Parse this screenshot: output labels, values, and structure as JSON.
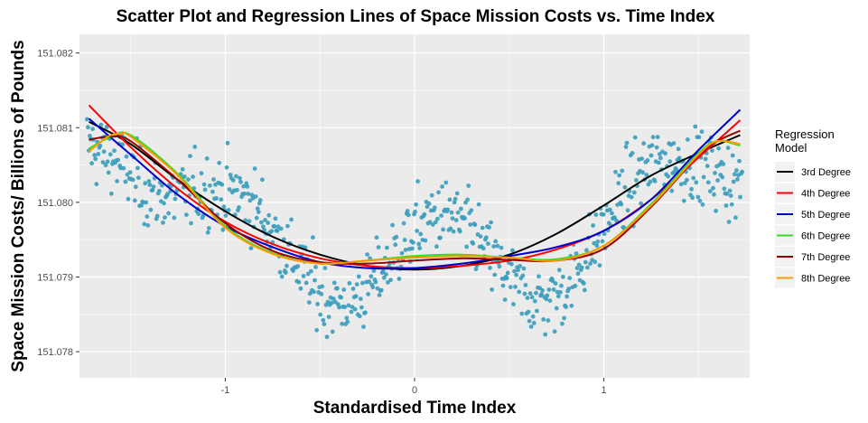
{
  "chart_data": {
    "type": "scatter",
    "title": "Scatter Plot and Regression Lines of Space Mission Costs vs. Time Index",
    "xlabel": "Standardised Time Index",
    "ylabel": "Space Mission Costs/ Billions of Pounds",
    "xlim": [
      -1.77,
      1.77
    ],
    "ylim": [
      151.07765,
      151.08225
    ],
    "x_ticks": [
      -1,
      0,
      1
    ],
    "x_tick_labels": [
      "-1",
      "0",
      "1"
    ],
    "y_ticks": [
      151.078,
      151.079,
      151.08,
      151.081,
      151.082
    ],
    "y_tick_labels": [
      "151.078",
      "151.079",
      "151.080",
      "151.081",
      "151.082"
    ],
    "grid": true,
    "point_color": "#3a9dbb",
    "point_count": 700,
    "points_trend": "U-shaped cloud around the regression curves with wave-like oscillation; roughly 151.0808–151.0815 at x = -1.7, minimum about 151.0791 near x = 0, rising to about 151.0808 at x = 1.7",
    "legend": {
      "title": "Regression\nModel",
      "placement": "right"
    },
    "series": [
      {
        "name": "3rd Degree",
        "color": "#000000",
        "x": [
          -1.72,
          -1.5,
          -1.25,
          -1.0,
          -0.75,
          -0.5,
          -0.25,
          0.0,
          0.25,
          0.5,
          0.75,
          1.0,
          1.25,
          1.5,
          1.72
        ],
        "y": [
          151.08108,
          151.08078,
          151.0803,
          151.07988,
          151.07954,
          151.0793,
          151.07915,
          151.0791,
          151.07915,
          151.0793,
          151.07958,
          151.07996,
          151.08036,
          151.08066,
          151.0809
        ]
      },
      {
        "name": "4th Degree",
        "color": "#ff0000",
        "x": [
          -1.72,
          -1.5,
          -1.25,
          -1.0,
          -0.75,
          -0.5,
          -0.25,
          0.0,
          0.25,
          0.5,
          0.75,
          1.0,
          1.25,
          1.5,
          1.72
        ],
        "y": [
          151.0813,
          151.08074,
          151.08018,
          151.07974,
          151.07944,
          151.07925,
          151.07915,
          151.07912,
          151.07915,
          151.07922,
          151.07937,
          151.07962,
          151.08004,
          151.0806,
          151.0811
        ]
      },
      {
        "name": "5th Degree",
        "color": "#0000cc",
        "x": [
          -1.72,
          -1.5,
          -1.25,
          -1.0,
          -0.75,
          -0.5,
          -0.25,
          0.0,
          0.25,
          0.5,
          0.75,
          1.0,
          1.25,
          1.5,
          1.72
        ],
        "y": [
          151.08112,
          151.08064,
          151.0801,
          151.07968,
          151.0794,
          151.0792,
          151.07912,
          151.07912,
          151.07918,
          151.07928,
          151.0794,
          151.07962,
          151.08004,
          151.0807,
          151.08124
        ]
      },
      {
        "name": "6th Degree",
        "color": "#33dd22",
        "x": [
          -1.72,
          -1.6,
          -1.5,
          -1.25,
          -1.0,
          -0.75,
          -0.5,
          -0.25,
          0.0,
          0.25,
          0.5,
          0.75,
          1.0,
          1.25,
          1.5,
          1.6,
          1.72
        ],
        "y": [
          151.08072,
          151.08088,
          151.0809,
          151.08038,
          151.07968,
          151.07932,
          151.07918,
          151.07922,
          151.07928,
          151.0793,
          151.07926,
          151.07924,
          151.07942,
          151.07998,
          151.08066,
          151.08082,
          151.08076
        ]
      },
      {
        "name": "7th Degree",
        "color": "#990000",
        "x": [
          -1.72,
          -1.6,
          -1.5,
          -1.25,
          -1.0,
          -0.75,
          -0.5,
          -0.25,
          0.0,
          0.25,
          0.5,
          0.75,
          1.0,
          1.25,
          1.5,
          1.6,
          1.72
        ],
        "y": [
          151.08084,
          151.08088,
          151.08082,
          151.0803,
          151.07972,
          151.07935,
          151.0792,
          151.07918,
          151.07922,
          151.07925,
          151.07923,
          151.07922,
          151.07938,
          151.07994,
          151.08063,
          151.08082,
          151.08096
        ]
      },
      {
        "name": "8th Degree",
        "color": "#ff9900",
        "x": [
          -1.72,
          -1.62,
          -1.55,
          -1.5,
          -1.25,
          -1.0,
          -0.75,
          -0.5,
          -0.25,
          0.0,
          0.25,
          0.5,
          0.75,
          1.0,
          1.25,
          1.5,
          1.6,
          1.72
        ],
        "y": [
          151.08068,
          151.08088,
          151.08092,
          151.08088,
          151.08036,
          151.07966,
          151.07931,
          151.07918,
          151.07922,
          151.07926,
          151.07928,
          151.07926,
          151.07922,
          151.07942,
          151.07996,
          151.08064,
          151.08082,
          151.08078
        ]
      }
    ]
  }
}
